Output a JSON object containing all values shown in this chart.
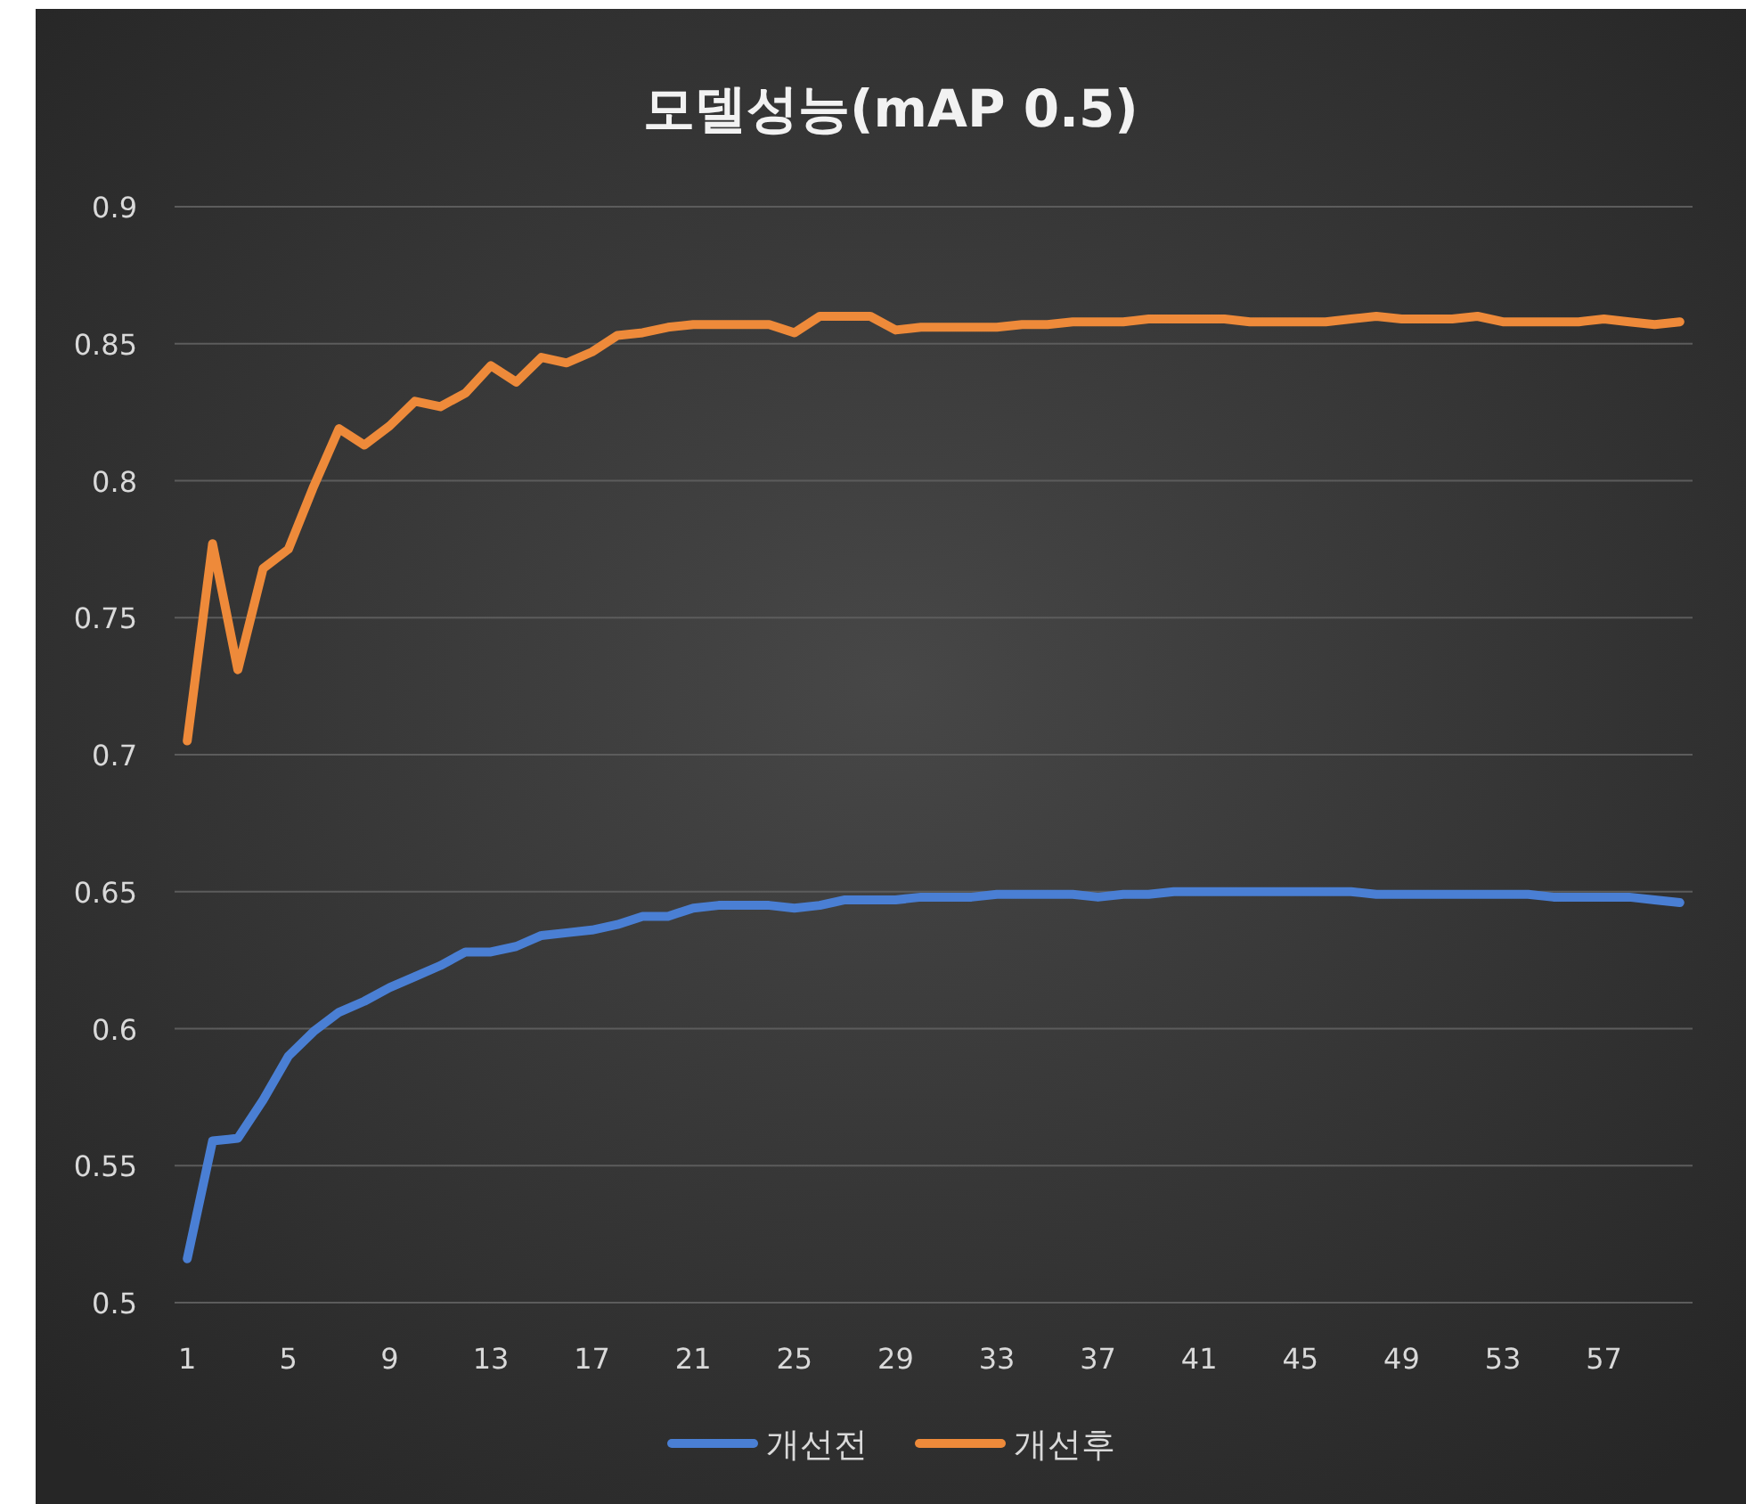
{
  "chart_data": {
    "type": "line",
    "title": "모델성능(mAP 0.5)",
    "categories": [
      "1",
      null,
      null,
      null,
      "5",
      null,
      null,
      null,
      "9",
      null,
      null,
      null,
      "13",
      null,
      null,
      null,
      "17",
      null,
      null,
      null,
      "21",
      null,
      null,
      null,
      "25",
      null,
      null,
      null,
      "29",
      null,
      null,
      null,
      "33",
      null,
      null,
      null,
      "37",
      null,
      null,
      null,
      "41",
      null,
      null,
      null,
      "45",
      null,
      null,
      null,
      "49",
      null,
      null,
      null,
      "53",
      null,
      null,
      null,
      "57",
      null,
      null,
      null
    ],
    "series": [
      {
        "name": "개선전",
        "color": "#4a7fd4",
        "values": [
          0.516,
          0.559,
          0.56,
          0.574,
          0.59,
          0.599,
          0.606,
          0.61,
          0.615,
          0.619,
          0.623,
          0.628,
          0.628,
          0.63,
          0.634,
          0.635,
          0.636,
          0.638,
          0.641,
          0.641,
          0.644,
          0.645,
          0.645,
          0.645,
          0.644,
          0.645,
          0.647,
          0.647,
          0.647,
          0.648,
          0.648,
          0.648,
          0.649,
          0.649,
          0.649,
          0.649,
          0.648,
          0.649,
          0.649,
          0.65,
          0.65,
          0.65,
          0.65,
          0.65,
          0.65,
          0.65,
          0.65,
          0.649,
          0.649,
          0.649,
          0.649,
          0.649,
          0.649,
          0.649,
          0.648,
          0.648,
          0.648,
          0.648,
          0.647,
          0.646
        ]
      },
      {
        "name": "개선후",
        "color": "#ee8a3a",
        "values": [
          0.705,
          0.777,
          0.731,
          0.768,
          0.775,
          0.798,
          0.819,
          0.813,
          0.82,
          0.829,
          0.827,
          0.832,
          0.842,
          0.836,
          0.845,
          0.843,
          0.847,
          0.853,
          0.854,
          0.856,
          0.857,
          0.857,
          0.857,
          0.857,
          0.854,
          0.86,
          0.86,
          0.86,
          0.855,
          0.856,
          0.856,
          0.856,
          0.856,
          0.857,
          0.857,
          0.858,
          0.858,
          0.858,
          0.859,
          0.859,
          0.859,
          0.859,
          0.858,
          0.858,
          0.858,
          0.858,
          0.859,
          0.86,
          0.859,
          0.859,
          0.859,
          0.86,
          0.858,
          0.858,
          0.858,
          0.858,
          0.859,
          0.858,
          0.857,
          0.858
        ]
      }
    ],
    "ylim": [
      0.5,
      0.9
    ],
    "yticks": [
      0.5,
      0.55,
      0.6,
      0.65,
      0.7,
      0.75,
      0.8,
      0.85,
      0.9
    ],
    "grid": "y",
    "legend": "bottom",
    "line_style": "solid"
  }
}
